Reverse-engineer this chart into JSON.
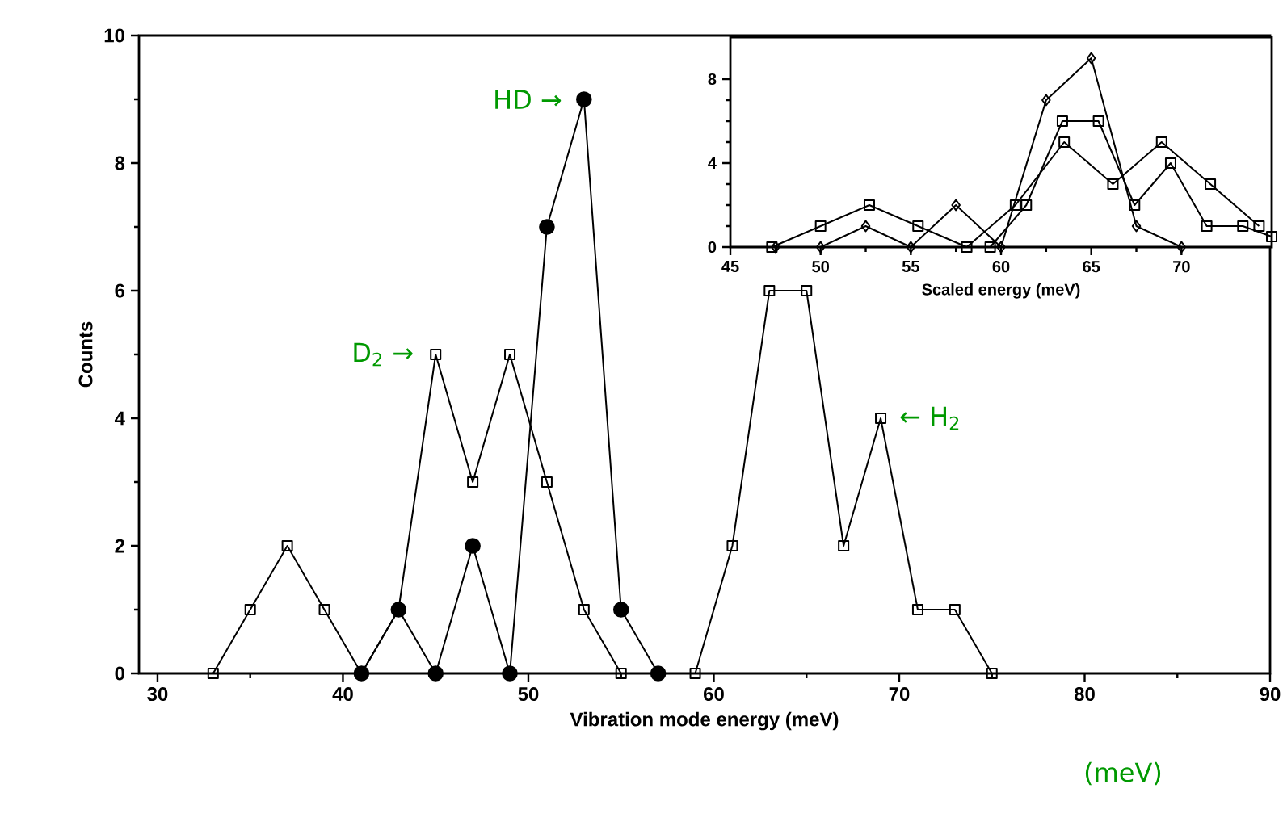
{
  "chart_data": [
    {
      "type": "line",
      "xlabel": "Vibration mode energy (meV)",
      "ylabel": "Counts",
      "xlim": [
        29,
        90
      ],
      "ylim": [
        0,
        10
      ],
      "xticks": [
        30,
        40,
        50,
        60,
        70,
        80,
        90
      ],
      "yticks": [
        0,
        2,
        4,
        6,
        8,
        10
      ],
      "series": [
        {
          "color": "#000000",
          "marker": "square",
          "x": [
            33,
            35,
            37,
            39,
            41,
            43,
            45,
            47,
            49,
            51,
            53,
            55
          ],
          "values": [
            0,
            1,
            2,
            1,
            0,
            1,
            5,
            3,
            5,
            3,
            1,
            0
          ]
        },
        {
          "color": "#000000",
          "marker": "circle",
          "x": [
            41,
            43,
            45,
            47,
            49,
            51,
            53,
            55,
            57
          ],
          "values": [
            0,
            1,
            0,
            2,
            0,
            7,
            9,
            1,
            0
          ]
        },
        {
          "color": "#000000",
          "marker": "square",
          "x": [
            59,
            61,
            63,
            65,
            67,
            69,
            71,
            73,
            75
          ],
          "values": [
            0,
            2,
            6,
            6,
            2,
            4,
            1,
            1,
            0
          ]
        }
      ],
      "annotations": [
        {
          "text": "HD →",
          "x": 53,
          "y": 9
        },
        {
          "text": "D$_{2}$ →",
          "x": 45,
          "y": 5
        },
        {
          "text": "← H$_{2}$",
          "x": 69,
          "y": 4
        },
        "(meV)"
      ]
    },
    {
      "type": "line",
      "xlabel": "Scaled energy (meV)",
      "xlim": [
        45,
        75
      ],
      "ylim": [
        0,
        10
      ],
      "xticks": [
        45,
        50,
        55,
        60,
        65,
        70
      ],
      "yticks": [
        0,
        4,
        8
      ],
      "series": [
        {
          "color": "#000000",
          "marker": "square",
          "x": [
            47.3,
            50,
            52.7,
            55.4,
            58.1,
            60.8,
            63.5,
            66.2,
            68.9,
            71.6,
            74.3
          ],
          "values": [
            0,
            1,
            2,
            1,
            0,
            2,
            5,
            3,
            5,
            3,
            1
          ]
        },
        {
          "color": "#000000",
          "marker": "diamond",
          "x": [
            47.5,
            50,
            52.5,
            55,
            57.5,
            60,
            62.5,
            65,
            67.5,
            70
          ],
          "values": [
            0,
            0,
            1,
            0,
            2,
            0,
            7,
            9,
            1,
            0
          ]
        },
        {
          "color": "#000000",
          "marker": "square",
          "x": [
            59.4,
            61.4,
            63.4,
            65.4,
            67.4,
            69.4,
            71.4,
            73.4,
            75
          ],
          "values": [
            0,
            2,
            6,
            6,
            2,
            4,
            1,
            1,
            0.5
          ]
        }
      ]
    }
  ]
}
